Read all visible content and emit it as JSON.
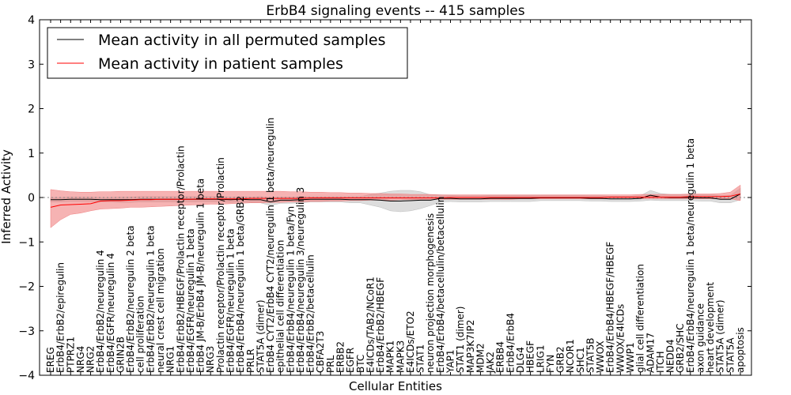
{
  "chart_data": {
    "type": "line",
    "title": "ErbB4 signaling events -- 415 samples",
    "xlabel": "Cellular Entities",
    "ylabel": "Inferred Activity",
    "ylim": [
      -4,
      4
    ],
    "yticks": [
      4,
      3,
      2,
      1,
      0,
      -1,
      -2,
      -3,
      -4
    ],
    "ytick_labels": [
      "4",
      "3",
      "2",
      "1",
      "0",
      "−1",
      "−2",
      "−3",
      "−4"
    ],
    "legend_position": "upper-left",
    "grid": false,
    "categories": [
      "EREG",
      "ErbB4/ErbB2/epiregulin",
      "PTPRZ1",
      "NRG4",
      "NRG2",
      "ErbB4/ErbB2/neuregulin 4",
      "ErbB4/EGFR/neuregulin 4",
      "GRIN2B",
      "ErbB4/ErbB2/neuregulin 2 beta",
      "cell proliferation",
      "ErbB4/ErbB2/neuregulin 1 beta",
      "neural crest cell migration",
      "NRG1",
      "ErbB4/ErbB2/HBEGF/Prolactin receptor/Prolactin",
      "ErbB4/EGFR/neuregulin 1 beta",
      "ErbB4 JM-B/ErbB4 JM-B/neuregulin 1 beta",
      "NRG3",
      "Prolactin receptor/Prolactin receptor/Prolactin",
      "ErbB4/EGFR/neuregulin 1 beta",
      "ErbB4/ErbB4/neuregulin 1 beta/GRB2",
      "PRLR",
      "STAT5A (dimer)",
      "ErbB4 CYT2/ErbB4 CYT2/neuregulin 1 beta/neuregulin",
      "epithelial cell differentiation",
      "ErbB4/ErbB4/neuregulin 1 beta/Fyn",
      "ErbB4/ErbB4/neuregulin 3/neuregulin 3",
      "ErbB4/ErbB2/betacellulin",
      "CBFA2T3",
      "PRL",
      "ERBB2",
      "EGFR",
      "BTC",
      "E4ICDs/TAB2/NCoR1",
      "ErbB4/ErbB2/HBEGF",
      "MAPK1",
      "MAPK3",
      "E4ICDs/ETO2",
      "STAT1",
      "neuron projection morphogenesis",
      "ErbB4/ErbB4/betacellulin/betacellulin",
      "YAP1",
      "STAT1 (dimer)",
      "MAP3K7IP2",
      "MDM2",
      "JAK2",
      "ERBB4",
      "ErbB4/ErbB4",
      "DLG4",
      "HBEGF",
      "LRIG1",
      "FYN",
      "GRB2",
      "NCOR1",
      "SHC1",
      "STAT5B",
      "WWOX",
      "ErbB4/ErbB4/HBEGF/HBEGF",
      "WWOX/E4ICDs",
      "WWP1",
      "glial cell differentiation",
      "ADAM17",
      "ITCH",
      "NEDD4",
      "GRB2/SHC",
      "ErbB4/ErbB4/neuregulin 1 beta/neuregulin 1 beta",
      "axon guidance",
      "heart development",
      "STAT5A (dimer)",
      "STAT5A",
      "apoptosis"
    ],
    "series": [
      {
        "name": "Mean activity in all permuted samples",
        "color": "#000000",
        "band_color": "#bbbbbb",
        "values": [
          -0.05,
          -0.05,
          -0.04,
          -0.04,
          -0.04,
          -0.05,
          -0.05,
          -0.05,
          -0.05,
          -0.04,
          -0.04,
          -0.04,
          -0.04,
          -0.04,
          -0.04,
          -0.04,
          -0.04,
          -0.04,
          -0.05,
          -0.04,
          -0.05,
          -0.05,
          -0.1,
          -0.06,
          -0.06,
          -0.05,
          -0.04,
          -0.04,
          -0.04,
          -0.04,
          -0.05,
          -0.05,
          -0.05,
          -0.06,
          -0.08,
          -0.08,
          -0.07,
          -0.06,
          -0.06,
          -0.02,
          -0.02,
          -0.03,
          -0.03,
          -0.03,
          -0.02,
          -0.02,
          -0.02,
          -0.02,
          -0.02,
          -0.01,
          -0.01,
          -0.01,
          -0.01,
          -0.01,
          -0.02,
          -0.02,
          -0.03,
          -0.03,
          -0.03,
          -0.02,
          0.05,
          0.01,
          0.0,
          0.0,
          0.0,
          -0.01,
          -0.01,
          -0.04,
          -0.04,
          0.08
        ],
        "lower": [
          -0.1,
          -0.1,
          -0.09,
          -0.09,
          -0.09,
          -0.1,
          -0.1,
          -0.11,
          -0.11,
          -0.1,
          -0.1,
          -0.1,
          -0.1,
          -0.1,
          -0.1,
          -0.1,
          -0.1,
          -0.1,
          -0.11,
          -0.1,
          -0.11,
          -0.12,
          -0.18,
          -0.13,
          -0.13,
          -0.12,
          -0.1,
          -0.1,
          -0.1,
          -0.1,
          -0.12,
          -0.12,
          -0.17,
          -0.22,
          -0.3,
          -0.32,
          -0.3,
          -0.25,
          -0.18,
          -0.1,
          -0.09,
          -0.1,
          -0.1,
          -0.1,
          -0.09,
          -0.09,
          -0.09,
          -0.09,
          -0.09,
          -0.07,
          -0.07,
          -0.07,
          -0.07,
          -0.07,
          -0.08,
          -0.08,
          -0.09,
          -0.09,
          -0.09,
          -0.08,
          -0.06,
          -0.07,
          -0.07,
          -0.07,
          -0.07,
          -0.08,
          -0.08,
          -0.12,
          -0.12,
          -0.05
        ],
        "upper": [
          0.0,
          0.0,
          0.01,
          0.01,
          0.01,
          0.0,
          0.0,
          0.01,
          0.01,
          0.02,
          0.02,
          0.02,
          0.02,
          0.02,
          0.02,
          0.02,
          0.02,
          0.02,
          0.01,
          0.02,
          0.01,
          0.02,
          0.0,
          0.01,
          0.01,
          0.02,
          0.02,
          0.02,
          0.02,
          0.02,
          0.02,
          0.02,
          0.07,
          0.1,
          0.14,
          0.16,
          0.16,
          0.13,
          0.06,
          0.06,
          0.05,
          0.04,
          0.04,
          0.04,
          0.05,
          0.05,
          0.05,
          0.05,
          0.05,
          0.05,
          0.05,
          0.05,
          0.05,
          0.05,
          0.04,
          0.04,
          0.03,
          0.03,
          0.03,
          0.04,
          0.16,
          0.09,
          0.07,
          0.07,
          0.07,
          0.06,
          0.06,
          0.04,
          0.04,
          0.21
        ]
      },
      {
        "name": "Mean activity in patient samples",
        "color": "#ff0000",
        "band_color": "#f08080",
        "values": [
          -0.22,
          -0.17,
          -0.16,
          -0.15,
          -0.14,
          -0.08,
          -0.07,
          -0.07,
          -0.06,
          -0.05,
          -0.05,
          -0.04,
          -0.04,
          -0.04,
          -0.04,
          -0.03,
          -0.03,
          -0.03,
          -0.03,
          -0.03,
          -0.02,
          -0.02,
          -0.02,
          -0.02,
          -0.02,
          -0.02,
          -0.01,
          -0.01,
          -0.01,
          -0.01,
          -0.01,
          -0.01,
          -0.01,
          -0.01,
          -0.01,
          -0.01,
          -0.01,
          -0.01,
          -0.01,
          -0.01,
          0.0,
          0.0,
          0.0,
          0.0,
          0.0,
          0.0,
          0.0,
          0.0,
          0.0,
          0.0,
          0.0,
          0.0,
          0.0,
          0.0,
          0.0,
          0.0,
          0.01,
          0.01,
          0.01,
          0.01,
          0.01,
          0.01,
          0.01,
          0.01,
          0.02,
          0.02,
          0.02,
          0.02,
          0.03,
          0.08
        ],
        "lower": [
          -0.68,
          -0.5,
          -0.38,
          -0.35,
          -0.3,
          -0.26,
          -0.25,
          -0.24,
          -0.22,
          -0.22,
          -0.21,
          -0.2,
          -0.19,
          -0.18,
          -0.17,
          -0.16,
          -0.15,
          -0.15,
          -0.14,
          -0.13,
          -0.12,
          -0.12,
          -0.11,
          -0.11,
          -0.1,
          -0.1,
          -0.09,
          -0.09,
          -0.08,
          -0.08,
          -0.07,
          -0.07,
          -0.06,
          -0.06,
          -0.06,
          -0.05,
          -0.05,
          -0.05,
          -0.05,
          -0.04,
          -0.04,
          -0.04,
          -0.04,
          -0.04,
          -0.04,
          -0.04,
          -0.04,
          -0.03,
          -0.03,
          -0.03,
          -0.03,
          -0.03,
          -0.03,
          -0.03,
          -0.03,
          -0.03,
          -0.03,
          -0.03,
          -0.03,
          -0.03,
          -0.03,
          -0.03,
          -0.03,
          -0.03,
          -0.03,
          -0.03,
          -0.03,
          -0.03,
          -0.03,
          -0.07
        ],
        "upper": [
          0.18,
          0.15,
          0.13,
          0.12,
          0.12,
          0.13,
          0.13,
          0.14,
          0.14,
          0.14,
          0.14,
          0.14,
          0.14,
          0.14,
          0.14,
          0.14,
          0.14,
          0.14,
          0.14,
          0.14,
          0.14,
          0.14,
          0.14,
          0.14,
          0.13,
          0.13,
          0.12,
          0.12,
          0.11,
          0.11,
          0.1,
          0.1,
          0.09,
          0.09,
          0.08,
          0.08,
          0.07,
          0.07,
          0.07,
          0.06,
          0.06,
          0.06,
          0.06,
          0.06,
          0.06,
          0.06,
          0.06,
          0.06,
          0.06,
          0.06,
          0.06,
          0.06,
          0.06,
          0.06,
          0.06,
          0.06,
          0.06,
          0.06,
          0.06,
          0.07,
          0.07,
          0.07,
          0.07,
          0.07,
          0.08,
          0.08,
          0.08,
          0.09,
          0.12,
          0.28
        ]
      }
    ]
  }
}
